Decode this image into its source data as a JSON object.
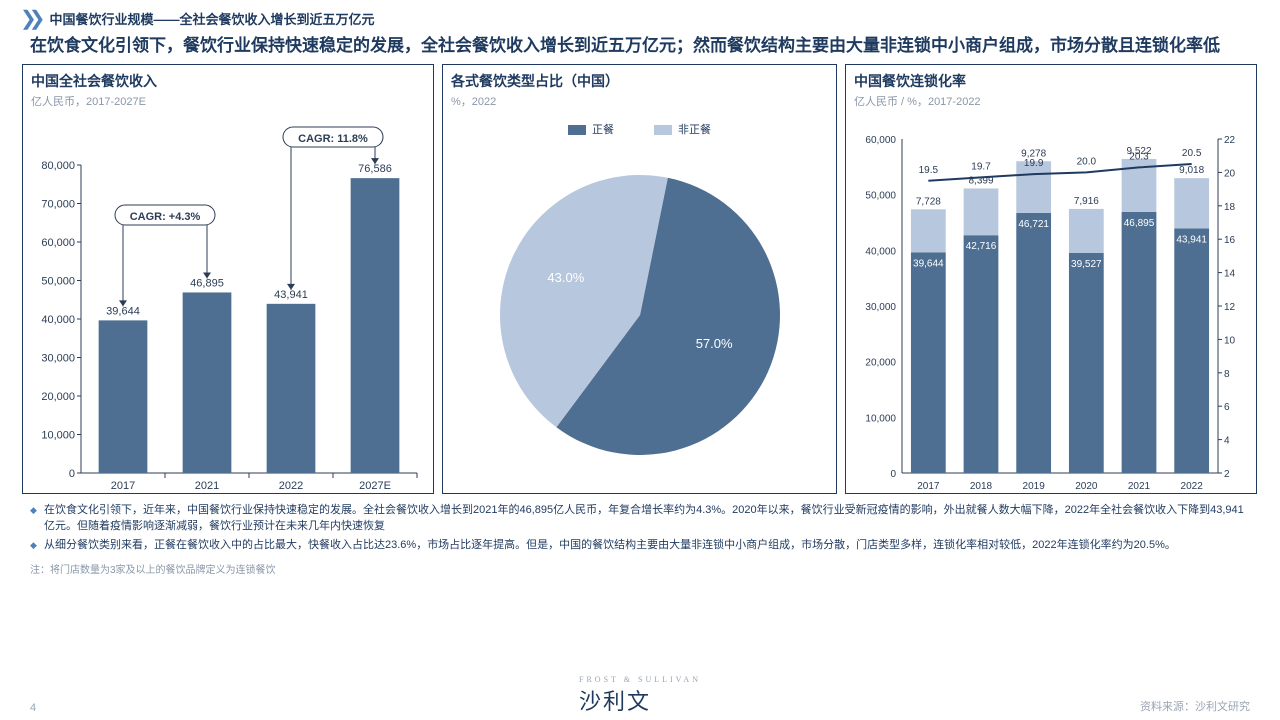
{
  "header": {
    "crumb": "中国餐饮行业规模——全社会餐饮收入增长到近五万亿元"
  },
  "intro": "在饮食文化引领下，餐饮行业保持快速稳定的发展，全社会餐饮收入增长到近五万亿元；然而餐饮结构主要由大量非连锁中小商户组成，市场分散且连锁化率低",
  "colors": {
    "axis": "#2b3d55",
    "dark_bar": "#4f6f92",
    "light_bar": "#b7c7dd",
    "pie_dark": "#4f6f92",
    "pie_light": "#b7c7dd",
    "label_box": "#ffffff",
    "label_border": "#2b3d55",
    "grid": "#d8dde6"
  },
  "chart1": {
    "title": "中国全社会餐饮收入",
    "subtitle": "亿人民币，2017-2027E",
    "categories": [
      "2017",
      "2021",
      "2022",
      "2027E"
    ],
    "values": [
      39644,
      46895,
      43941,
      76586
    ],
    "y_max": 80000,
    "y_step": 10000,
    "cagr_labels": [
      {
        "text": "CAGR: +4.3%",
        "from": 0,
        "to": 1
      },
      {
        "text": "CAGR: 11.8%",
        "from": 2,
        "to": 3
      }
    ]
  },
  "chart2": {
    "title": "各式餐饮类型占比（中国）",
    "subtitle": "%，2022",
    "legend": [
      {
        "label": "正餐",
        "color": "#4f6f92"
      },
      {
        "label": "非正餐",
        "color": "#b7c7dd"
      }
    ],
    "slices": [
      {
        "label": "57.0%",
        "value": 57.0,
        "color": "#4f6f92"
      },
      {
        "label": "43.0%",
        "value": 43.0,
        "color": "#b7c7dd"
      }
    ]
  },
  "chart3": {
    "title": "中国餐饮连锁化率",
    "subtitle": "亿人民币 / %，2017-2022",
    "categories": [
      "2017",
      "2018",
      "2019",
      "2020",
      "2021",
      "2022"
    ],
    "dark": [
      39644,
      42716,
      46721,
      39527,
      46895,
      43941
    ],
    "stack": [
      7728,
      8399,
      9278,
      7916,
      9522,
      9018
    ],
    "line": [
      19.5,
      19.7,
      19.9,
      20.0,
      20.3,
      20.5
    ],
    "y_left_max": 60000,
    "y_left_step": 10000,
    "y_right_max": 22,
    "y_right_min": 2,
    "y_right_step": 2
  },
  "bullets": [
    "在饮食文化引领下，近年来，中国餐饮行业保持快速稳定的发展。全社会餐饮收入增长到2021年的46,895亿人民币，年复合增长率约为4.3%。2020年以来，餐饮行业受新冠疫情的影响，外出就餐人数大幅下降，2022年全社会餐饮收入下降到43,941亿元。但随着疫情影响逐渐减弱，餐饮行业预计在未来几年内快速恢复",
    "从细分餐饮类别来看，正餐在餐饮收入中的占比最大，快餐收入占比达23.6%，市场占比逐年提高。但是，中国的餐饮结构主要由大量非连锁中小商户组成，市场分散，门店类型多样，连锁化率相对较低，2022年连锁化率约为20.5%。"
  ],
  "note": "注：将门店数量为3家及以上的餐饮品牌定义为连锁餐饮",
  "footer": {
    "page": "4",
    "brand_sub": "FROST & SULLIVAN",
    "brand": "沙利文",
    "source": "资料来源：沙利文研究"
  }
}
